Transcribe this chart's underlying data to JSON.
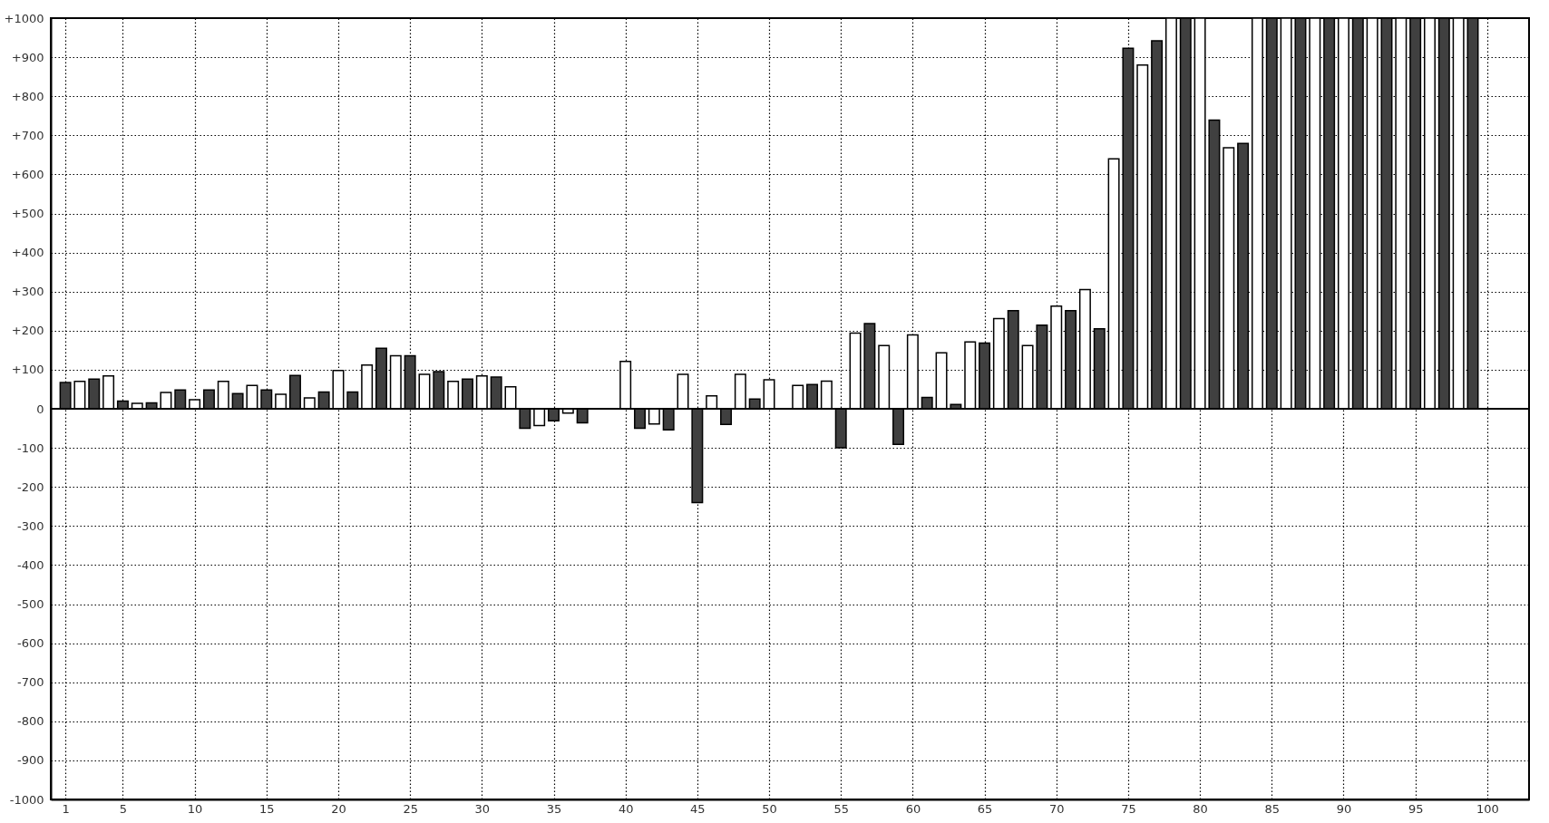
{
  "chart_data": {
    "type": "bar",
    "xlim": [
      0.3,
      102.6
    ],
    "xticks": [
      1,
      5,
      10,
      15,
      20,
      25,
      30,
      35,
      40,
      45,
      50,
      55,
      60,
      65,
      70,
      75,
      80,
      85,
      90,
      95,
      100
    ],
    "ylim": [
      -1000,
      1000
    ],
    "yticks": [
      {
        "value": -1000,
        "label": "-1000"
      },
      {
        "value": -900,
        "label": "-900"
      },
      {
        "value": -800,
        "label": "-800"
      },
      {
        "value": -700,
        "label": "-700"
      },
      {
        "value": -600,
        "label": "-600"
      },
      {
        "value": -500,
        "label": "-500"
      },
      {
        "value": -400,
        "label": "-400"
      },
      {
        "value": -300,
        "label": "-300"
      },
      {
        "value": -200,
        "label": "-200"
      },
      {
        "value": -100,
        "label": "-100"
      },
      0,
      {
        "value": 100,
        "label": "+100"
      },
      {
        "value": 200,
        "label": "+200"
      },
      {
        "value": 300,
        "label": "+300"
      },
      {
        "value": 400,
        "label": "+400"
      },
      {
        "value": 500,
        "label": "+500"
      },
      {
        "value": 600,
        "label": "+600"
      },
      {
        "value": 700,
        "label": "+700"
      },
      {
        "value": 800,
        "label": "+800"
      },
      {
        "value": 900,
        "label": "+900"
      },
      {
        "value": 1000,
        "label": "+1000"
      }
    ],
    "grid": true,
    "ref_lines": [
      {
        "axis": "y",
        "value": 0,
        "color": "#000000",
        "line_style": "solid"
      }
    ],
    "series": [
      {
        "color": "#404040",
        "x": [
          1,
          3,
          5,
          7,
          9,
          11,
          13,
          15,
          17,
          19,
          21,
          23,
          25,
          27,
          29,
          31,
          33,
          35,
          37,
          39,
          41,
          43,
          45,
          47,
          49,
          51,
          53,
          55,
          57,
          59,
          61,
          63,
          65,
          67,
          69,
          71,
          73,
          75,
          77,
          79,
          81,
          83,
          85,
          87,
          89,
          91,
          93,
          95,
          97,
          99
        ],
        "values": [
          67,
          76,
          20,
          15,
          48,
          48,
          39,
          48,
          85,
          43,
          43,
          155,
          136,
          95,
          76,
          81,
          -50,
          -31,
          -36,
          null,
          -50,
          -54,
          -240,
          -40,
          25,
          null,
          62,
          -100,
          218,
          -91,
          29,
          11,
          168,
          251,
          214,
          251,
          205,
          923,
          942,
          1000,
          739,
          679,
          1000,
          1000,
          1000,
          1000,
          1000,
          1000,
          1000,
          1000
        ]
      },
      {
        "color": "#ffffff",
        "x": [
          2,
          4,
          6,
          8,
          10,
          12,
          14,
          16,
          18,
          20,
          22,
          24,
          26,
          28,
          30,
          32,
          34,
          36,
          38,
          40,
          42,
          44,
          46,
          48,
          50,
          52,
          54,
          56,
          58,
          60,
          62,
          64,
          66,
          68,
          70,
          72,
          74,
          76,
          78,
          80,
          82,
          84,
          86,
          88,
          90,
          92,
          94,
          96,
          98
        ],
        "values": [
          70,
          84,
          14,
          42,
          23,
          70,
          60,
          37,
          28,
          98,
          112,
          136,
          88,
          70,
          84,
          56,
          -43,
          -11,
          null,
          121,
          -39,
          88,
          33,
          88,
          74,
          60,
          71,
          194,
          162,
          189,
          143,
          171,
          231,
          162,
          263,
          305,
          640,
          880,
          1000,
          1000,
          668,
          1000,
          1000,
          1000,
          1000,
          1000,
          1000,
          1000,
          1000
        ]
      }
    ]
  }
}
